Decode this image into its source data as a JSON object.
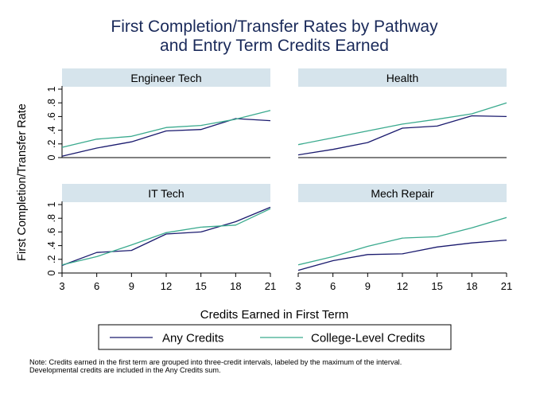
{
  "title_lines": [
    "First Completion/Transfer Rates by Pathway",
    "and Entry Term Credits Earned"
  ],
  "y_label": "First Completion/Transfer Rate",
  "x_label": "Credits Earned in First Term",
  "legend": {
    "items": [
      {
        "label": "Any Credits",
        "color": "#1a1a6e"
      },
      {
        "label": "College-Level Credits",
        "color": "#3aaa8e"
      }
    ]
  },
  "note_lines": [
    "Note: Credits earned in the first term are grouped into three-credit intervals, labeled by the maximum of the interval.",
    "Developmental credits are included in the Any Credits sum."
  ],
  "colors": {
    "title": "#1a2a5a",
    "strip": "#d6e4ec",
    "any": "#1a1a6e",
    "college": "#3aaa8e"
  },
  "chart_data": {
    "type": "line",
    "x_ticks": [
      3,
      6,
      9,
      12,
      15,
      18,
      21
    ],
    "y_ticks": [
      0,
      0.2,
      0.4,
      0.6,
      0.8,
      1
    ],
    "y_tick_labels": [
      "0",
      ".2",
      ".4",
      ".6",
      ".8",
      "1"
    ],
    "xlim": [
      3,
      21
    ],
    "ylim": [
      0,
      1
    ],
    "grid": false,
    "legend_placement": "bottom",
    "panels": [
      {
        "title": "Engineer Tech",
        "x": [
          3,
          6,
          9,
          12,
          15,
          18,
          21
        ],
        "series": [
          {
            "name": "Any Credits",
            "values": [
              0.02,
              0.14,
              0.23,
              0.39,
              0.41,
              0.57,
              0.54
            ]
          },
          {
            "name": "College-Level Credits",
            "values": [
              0.15,
              0.27,
              0.31,
              0.44,
              0.47,
              0.56,
              0.69
            ]
          }
        ]
      },
      {
        "title": "Health",
        "x": [
          3,
          6,
          9,
          12,
          15,
          18,
          21
        ],
        "series": [
          {
            "name": "Any Credits",
            "values": [
              0.04,
              0.12,
              0.22,
              0.43,
              0.46,
              0.61,
              0.6
            ]
          },
          {
            "name": "College-Level Credits",
            "values": [
              0.19,
              0.29,
              0.39,
              0.49,
              0.56,
              0.64,
              0.8
            ]
          }
        ]
      },
      {
        "title": "IT Tech",
        "x": [
          3,
          6,
          9,
          12,
          15,
          18,
          21
        ],
        "series": [
          {
            "name": "Any Credits",
            "values": [
              0.11,
              0.3,
              0.33,
              0.57,
              0.6,
              0.75,
              0.96
            ]
          },
          {
            "name": "College-Level Credits",
            "values": [
              0.12,
              0.24,
              0.41,
              0.59,
              0.67,
              0.7,
              0.94
            ]
          }
        ]
      },
      {
        "title": "Mech Repair",
        "x": [
          3,
          6,
          9,
          12,
          15,
          18,
          21
        ],
        "series": [
          {
            "name": "Any Credits",
            "values": [
              0.04,
              0.18,
              0.27,
              0.28,
              0.38,
              0.44,
              0.48
            ]
          },
          {
            "name": "College-Level Credits",
            "values": [
              0.12,
              0.24,
              0.39,
              0.51,
              0.53,
              0.66,
              0.81
            ]
          }
        ]
      }
    ]
  }
}
